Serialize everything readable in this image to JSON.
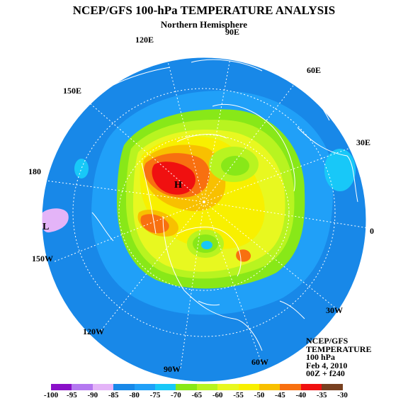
{
  "header": {
    "title": "NCEP/GFS 100-hPa TEMPERATURE ANALYSIS",
    "subtitle": "Northern Hemisphere"
  },
  "map": {
    "projection": "north-polar-stereographic",
    "longitude_labels": [
      "90E",
      "60E",
      "30E",
      "0",
      "30W",
      "60W",
      "90W",
      "120W",
      "150W",
      "180",
      "150E",
      "120E"
    ],
    "pressure_system_labels": [
      {
        "label": "H",
        "type": "high"
      },
      {
        "label": "L",
        "type": "low"
      }
    ]
  },
  "info": {
    "source": "NCEP/GFS",
    "field": "TEMPERATURE",
    "level": "100 hPa",
    "date": "Feb 4, 2010",
    "run": "00Z + f240"
  },
  "legend": {
    "ticks": [
      "-100",
      "-95",
      "-90",
      "-85",
      "-80",
      "-75",
      "-70",
      "-65",
      "-60",
      "-55",
      "-50",
      "-45",
      "-40",
      "-35",
      "-30"
    ],
    "colors": [
      "#8a10c8",
      "#b478f0",
      "#e4b4f8",
      "#1888e8",
      "#20a0f8",
      "#18c8f8",
      "#88e818",
      "#b8f420",
      "#e8f820",
      "#f8f000",
      "#f8c000",
      "#f87010",
      "#f01010",
      "#784020"
    ]
  },
  "colors": {
    "background": "#ffffff",
    "boundary": "#ffffff",
    "grid": "#ffffff"
  }
}
